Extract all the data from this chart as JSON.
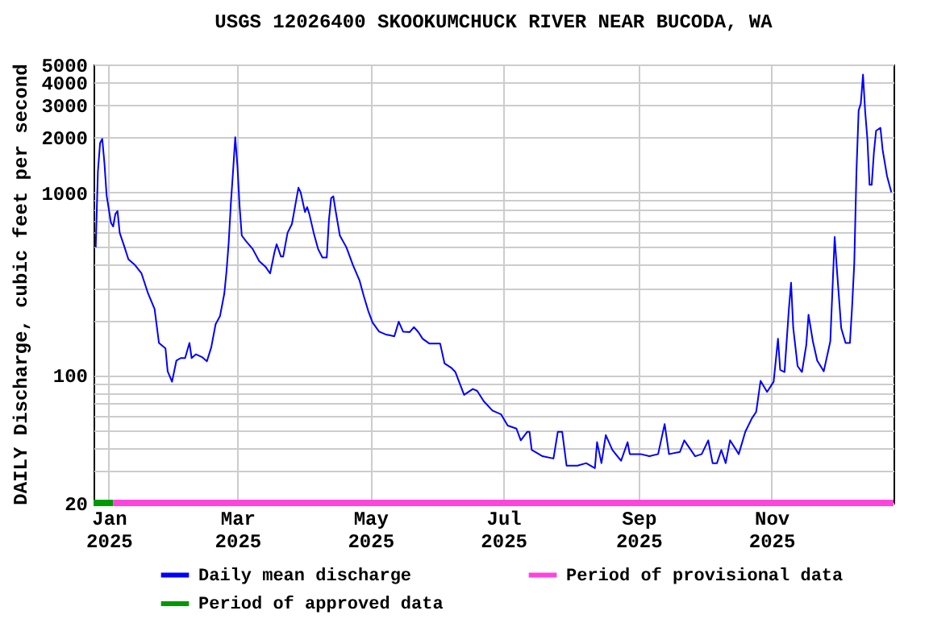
{
  "chart_data": {
    "type": "line",
    "title": "USGS 12026400 SKOOKUMCHUCK RIVER NEAR BUCODA, WA",
    "ylabel": "DAILY Discharge, cubic feet per second",
    "log": "y",
    "grid": true,
    "legend": "bottom",
    "xlim": [
      "2024-12-25",
      "2025-12-27"
    ],
    "xticks": [
      {
        "value": "2025-01-01",
        "label": "Jan 2025"
      },
      {
        "value": "2025-03-01",
        "label": "Mar 2025"
      },
      {
        "value": "2025-05-01",
        "label": "May 2025"
      },
      {
        "value": "2025-07-01",
        "label": "Jul 2025"
      },
      {
        "value": "2025-09-01",
        "label": "Sep 2025"
      },
      {
        "value": "2025-11-01",
        "label": "Nov 2025"
      }
    ],
    "ylim": [
      20,
      5000
    ],
    "yticks": [
      20,
      {
        "value": 30,
        "label": null
      },
      {
        "value": 40,
        "label": null
      },
      {
        "value": 50,
        "label": null
      },
      {
        "value": 60,
        "label": null
      },
      {
        "value": 70,
        "label": null
      },
      {
        "value": 80,
        "label": null
      },
      {
        "value": 90,
        "label": null
      },
      100,
      {
        "value": 200,
        "label": null
      },
      {
        "value": 300,
        "label": null
      },
      {
        "value": 400,
        "label": null
      },
      {
        "value": 500,
        "label": null
      },
      {
        "value": 600,
        "label": null
      },
      {
        "value": 700,
        "label": null
      },
      {
        "value": 800,
        "label": null
      },
      {
        "value": 900,
        "label": null
      },
      1000,
      2000,
      3000,
      4000,
      5000
    ],
    "x": [
      "2024-12-26",
      "2024-12-27",
      "2024-12-28",
      "2024-12-29",
      "2024-12-30",
      "2024-12-31",
      "2025-01-01",
      "2025-01-02",
      "2025-01-03",
      "2025-01-04",
      "2025-01-05",
      "2025-01-06",
      "2025-01-08",
      "2025-01-10",
      "2025-01-13",
      "2025-01-16",
      "2025-01-19",
      "2025-01-22",
      "2025-01-24",
      "2025-01-27",
      "2025-01-28",
      "2025-01-30",
      "2025-02-01",
      "2025-02-03",
      "2025-02-05",
      "2025-02-07",
      "2025-02-08",
      "2025-02-10",
      "2025-02-13",
      "2025-02-15",
      "2025-02-17",
      "2025-02-19",
      "2025-02-21",
      "2025-02-23",
      "2025-02-24",
      "2025-02-25",
      "2025-02-26",
      "2025-02-27",
      "2025-02-28",
      "2025-03-01",
      "2025-03-02",
      "2025-03-03",
      "2025-03-05",
      "2025-03-08",
      "2025-03-11",
      "2025-03-14",
      "2025-03-16",
      "2025-03-18",
      "2025-03-19",
      "2025-03-21",
      "2025-03-22",
      "2025-03-24",
      "2025-03-26",
      "2025-03-28",
      "2025-03-29",
      "2025-03-30",
      "2025-04-01",
      "2025-04-02",
      "2025-04-03",
      "2025-04-05",
      "2025-04-07",
      "2025-04-09",
      "2025-04-11",
      "2025-04-12",
      "2025-04-13",
      "2025-04-14",
      "2025-04-15",
      "2025-04-17",
      "2025-04-20",
      "2025-04-23",
      "2025-04-26",
      "2025-04-28",
      "2025-04-30",
      "2025-05-02",
      "2025-05-05",
      "2025-05-08",
      "2025-05-10",
      "2025-05-12",
      "2025-05-14",
      "2025-05-16",
      "2025-05-19",
      "2025-05-21",
      "2025-05-23",
      "2025-05-25",
      "2025-05-28",
      "2025-06-02",
      "2025-06-04",
      "2025-06-07",
      "2025-06-09",
      "2025-06-11",
      "2025-06-13",
      "2025-06-17",
      "2025-06-19",
      "2025-06-22",
      "2025-06-26",
      "2025-06-30",
      "2025-07-03",
      "2025-07-07",
      "2025-07-09",
      "2025-07-12",
      "2025-07-13",
      "2025-07-14",
      "2025-07-19",
      "2025-07-24",
      "2025-07-26",
      "2025-07-28",
      "2025-07-30",
      "2025-08-04",
      "2025-08-08",
      "2025-08-12",
      "2025-08-13",
      "2025-08-15",
      "2025-08-17",
      "2025-08-20",
      "2025-08-24",
      "2025-08-27",
      "2025-08-28",
      "2025-09-02",
      "2025-09-06",
      "2025-09-10",
      "2025-09-13",
      "2025-09-15",
      "2025-09-20",
      "2025-09-22",
      "2025-09-27",
      "2025-09-30",
      "2025-10-03",
      "2025-10-05",
      "2025-10-07",
      "2025-10-09",
      "2025-10-11",
      "2025-10-13",
      "2025-10-17",
      "2025-10-20",
      "2025-10-23",
      "2025-10-25",
      "2025-10-27",
      "2025-10-30",
      "2025-11-02",
      "2025-11-04",
      "2025-11-05",
      "2025-11-07",
      "2025-11-09",
      "2025-11-10",
      "2025-11-11",
      "2025-11-13",
      "2025-11-15",
      "2025-11-17",
      "2025-11-18",
      "2025-11-20",
      "2025-11-22",
      "2025-11-25",
      "2025-11-28",
      "2025-11-30",
      "2025-12-01",
      "2025-12-03",
      "2025-12-05",
      "2025-12-07",
      "2025-12-08",
      "2025-12-09",
      "2025-12-10",
      "2025-12-11",
      "2025-12-12",
      "2025-12-13",
      "2025-12-14",
      "2025-12-15",
      "2025-12-16",
      "2025-12-17",
      "2025-12-18",
      "2025-12-19",
      "2025-12-21",
      "2025-12-22",
      "2025-12-24",
      "2025-12-26"
    ],
    "series": [
      {
        "name": "Daily mean discharge",
        "color": "#0000ff",
        "values": [
          500,
          1300,
          1860,
          1960,
          1440,
          960,
          810,
          680,
          650,
          760,
          790,
          600,
          510,
          430,
          400,
          360,
          280,
          230,
          150,
          140,
          105,
          92,
          120,
          124,
          124,
          150,
          124,
          130,
          125,
          119,
          142,
          190,
          210,
          280,
          370,
          530,
          870,
          1300,
          2000,
          1400,
          840,
          580,
          540,
          490,
          420,
          390,
          360,
          470,
          520,
          445,
          445,
          600,
          670,
          910,
          1060,
          1000,
          780,
          830,
          760,
          600,
          490,
          440,
          440,
          710,
          930,
          950,
          800,
          580,
          500,
          400,
          330,
          270,
          225,
          194,
          173,
          167,
          165,
          163,
          196,
          173,
          172,
          183,
          172,
          158,
          149,
          149,
          116,
          110,
          104,
          90,
          78,
          84,
          82,
          72,
          64,
          61,
          53,
          51,
          44,
          49,
          49,
          39,
          36,
          35,
          49,
          49,
          32,
          32,
          33,
          31,
          43,
          33,
          47,
          39,
          34,
          43,
          37,
          37,
          36,
          37,
          54,
          37,
          38,
          44,
          36,
          37,
          44,
          33,
          33,
          39,
          33,
          44,
          37,
          49,
          58,
          63,
          93,
          81,
          92,
          158,
          107,
          104,
          230,
          320,
          181,
          112,
          104,
          147,
          214,
          153,
          120,
          105,
          153,
          570,
          382,
          181,
          150,
          150,
          237,
          410,
          1300,
          2800,
          3060,
          4400,
          2760,
          1960,
          1100,
          1100,
          1650,
          2170,
          2250,
          1710,
          1230,
          1000
        ]
      },
      {
        "name": "Period of approved data",
        "color": "#009900",
        "x": [
          "2024-12-25",
          "2025-01-03"
        ],
        "values": [
          20,
          20
        ]
      },
      {
        "name": "Period of provisional data",
        "color": "#ff44dd",
        "x": [
          "2025-01-03",
          "2025-12-27"
        ],
        "values": [
          20,
          20
        ]
      }
    ]
  }
}
